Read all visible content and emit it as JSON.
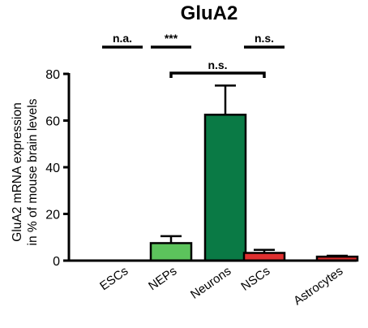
{
  "chart_data": {
    "type": "bar",
    "title": "GluA2",
    "ylabel_line1": "GluA2 mRNA expression",
    "ylabel_line2": "in % of mouse brain levels",
    "xlabel": "",
    "ylim": [
      0,
      80
    ],
    "yticks": [
      0,
      20,
      40,
      60,
      80
    ],
    "grid": false,
    "legend": "none",
    "categories": [
      "ESCs",
      "NEPs",
      "Neurons",
      "NSCs",
      "Astrocytes"
    ],
    "values": [
      0,
      7.5,
      62.5,
      3.3,
      1.7
    ],
    "errors": [
      0,
      3,
      12.5,
      1.3,
      0.4
    ],
    "colors": [
      "#5b9bd5",
      "#5cc35c",
      "#0a7a45",
      "#e03030",
      "#d42a2a"
    ],
    "significance": [
      {
        "label": "n.a.",
        "category": "ESCs"
      },
      {
        "label": "***",
        "category": "NEPs"
      },
      {
        "label": "n.s.",
        "category": "NSCs"
      },
      {
        "label": "n.s.",
        "from": "NEPs",
        "to": "NSCs"
      }
    ]
  }
}
